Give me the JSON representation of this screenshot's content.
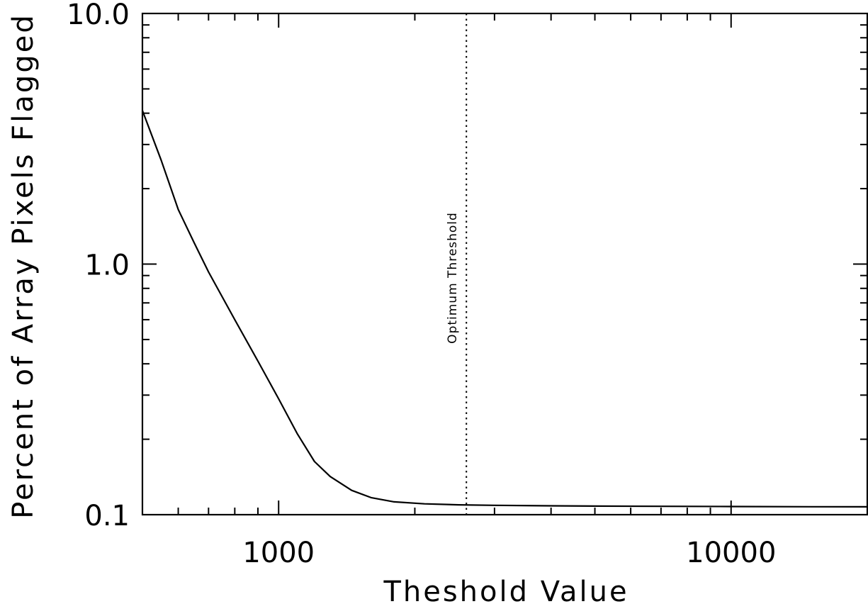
{
  "chart_data": {
    "type": "line",
    "title": "",
    "xlabel": "Theshold Value",
    "ylabel": "Percent of Array Pixels Flagged",
    "x_scale": "log",
    "y_scale": "log",
    "xlim": [
      500,
      20000
    ],
    "ylim": [
      0.1,
      10.0
    ],
    "x_ticks": [
      1000,
      10000
    ],
    "x_tick_labels": [
      "1000",
      "10000"
    ],
    "y_ticks": [
      0.1,
      1.0,
      10.0
    ],
    "y_tick_labels": [
      "0.1",
      "1.0",
      "10.0"
    ],
    "grid": false,
    "series": [
      {
        "x": [
          500,
          550,
          600,
          650,
          700,
          800,
          900,
          1000,
          1100,
          1200,
          1300,
          1450,
          1600,
          1800,
          2100,
          2500,
          3000,
          4000,
          5000,
          7000,
          10000,
          15000,
          20000
        ],
        "y": [
          4.1,
          2.6,
          1.65,
          1.22,
          0.93,
          0.6,
          0.41,
          0.29,
          0.21,
          0.163,
          0.142,
          0.125,
          0.117,
          0.1125,
          0.1105,
          0.1095,
          0.109,
          0.1085,
          0.1082,
          0.108,
          0.1078,
          0.1076,
          0.1075
        ],
        "color": "#000000",
        "style": "solid"
      }
    ],
    "annotations": [
      {
        "type": "vline",
        "x": 2600,
        "style": "dotted",
        "label": "Optimum Threshold"
      }
    ]
  }
}
